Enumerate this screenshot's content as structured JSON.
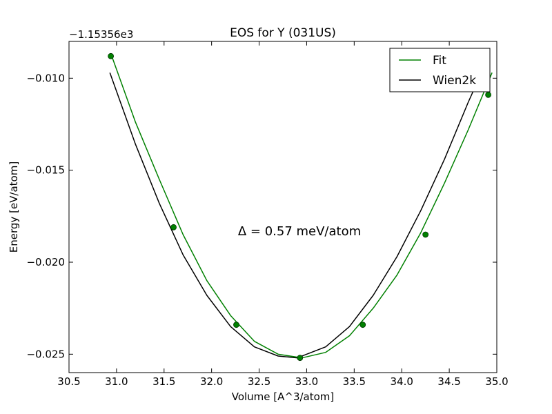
{
  "chart_data": {
    "type": "line",
    "title": "EOS for Y (031US)",
    "xlabel": "Volume [A^3/atom]",
    "ylabel": "Energy [eV/atom]",
    "offset_label": "−1.15356e3",
    "xlim": [
      30.5,
      35.0
    ],
    "ylim": [
      -0.026,
      -0.008
    ],
    "x_ticks": [
      30.5,
      31.0,
      31.5,
      32.0,
      32.5,
      33.0,
      33.5,
      34.0,
      34.5,
      35.0
    ],
    "x_tick_labels": [
      "30.5",
      "31.0",
      "31.5",
      "32.0",
      "32.5",
      "33.0",
      "33.5",
      "34.0",
      "34.5",
      "35.0"
    ],
    "y_ticks": [
      -0.01,
      -0.015,
      -0.02,
      -0.025
    ],
    "y_tick_labels": [
      "−0.010",
      "−0.015",
      "−0.020",
      "−0.025"
    ],
    "annotation": "Δ = 0.57 meV/atom",
    "grid": false,
    "legend_position": "top-right",
    "legend": [
      "Fit",
      "Wien2k"
    ],
    "series": [
      {
        "name": "Fit",
        "color": "#008000",
        "x": [
          30.95,
          31.2,
          31.45,
          31.7,
          31.95,
          32.2,
          32.45,
          32.7,
          32.95,
          33.2,
          33.45,
          33.7,
          33.95,
          34.2,
          34.45,
          34.7,
          34.95
        ],
        "y": [
          -0.0088,
          -0.0124,
          -0.0155,
          -0.0185,
          -0.021,
          -0.0229,
          -0.0243,
          -0.025,
          -0.0252,
          -0.0249,
          -0.024,
          -0.0225,
          -0.0207,
          -0.0184,
          -0.0157,
          -0.0128,
          -0.0097
        ],
        "markers": {
          "x": [
            30.94,
            31.6,
            32.26,
            32.93,
            33.59,
            34.25,
            34.91
          ],
          "y": [
            -0.0088,
            -0.0181,
            -0.0234,
            -0.0252,
            -0.0234,
            -0.0185,
            -0.0109
          ]
        }
      },
      {
        "name": "Wien2k",
        "color": "#000000",
        "x": [
          30.93,
          31.2,
          31.45,
          31.7,
          31.95,
          32.2,
          32.45,
          32.7,
          32.9,
          33.2,
          33.45,
          33.7,
          33.95,
          34.2,
          34.45,
          34.7,
          34.9
        ],
        "y": [
          -0.0097,
          -0.0136,
          -0.0168,
          -0.0196,
          -0.0218,
          -0.0235,
          -0.0246,
          -0.0251,
          -0.0252,
          -0.0246,
          -0.0235,
          -0.0218,
          -0.0197,
          -0.0172,
          -0.0144,
          -0.0113,
          -0.009
        ]
      }
    ]
  }
}
